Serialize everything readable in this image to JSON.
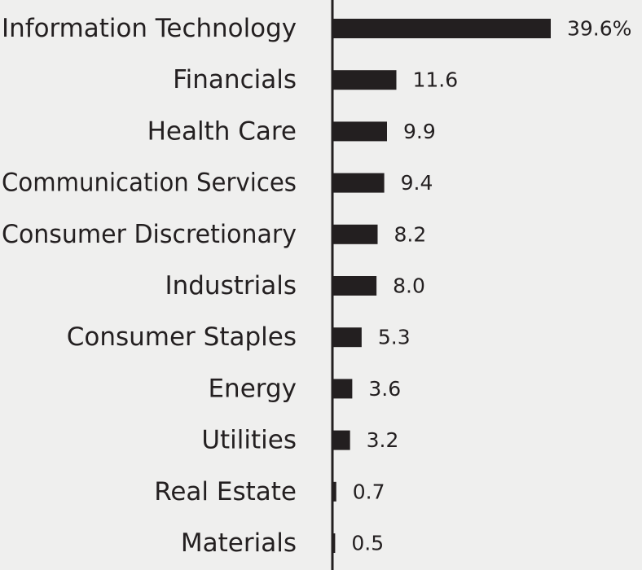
{
  "chart_data": {
    "type": "bar",
    "orientation": "horizontal",
    "categories": [
      "Information Technology",
      "Financials",
      "Health Care",
      "Communication Services",
      "Consumer Discretionary",
      "Industrials",
      "Consumer Staples",
      "Energy",
      "Utilities",
      "Real Estate",
      "Materials"
    ],
    "values": [
      39.6,
      11.6,
      9.9,
      9.4,
      8.2,
      8.0,
      5.3,
      3.6,
      3.2,
      0.7,
      0.5
    ],
    "value_labels": [
      "39.6%",
      "11.6",
      "9.9",
      "9.4",
      "8.2",
      "8.0",
      "5.3",
      "3.6",
      "3.2",
      "0.7",
      "0.5"
    ],
    "xlim": [
      0,
      39.6
    ],
    "grid": false,
    "legend": "none",
    "colors": {
      "background": "#efefee",
      "bar": "#231f20",
      "axis": "#231f20",
      "text": "#231f20"
    }
  }
}
